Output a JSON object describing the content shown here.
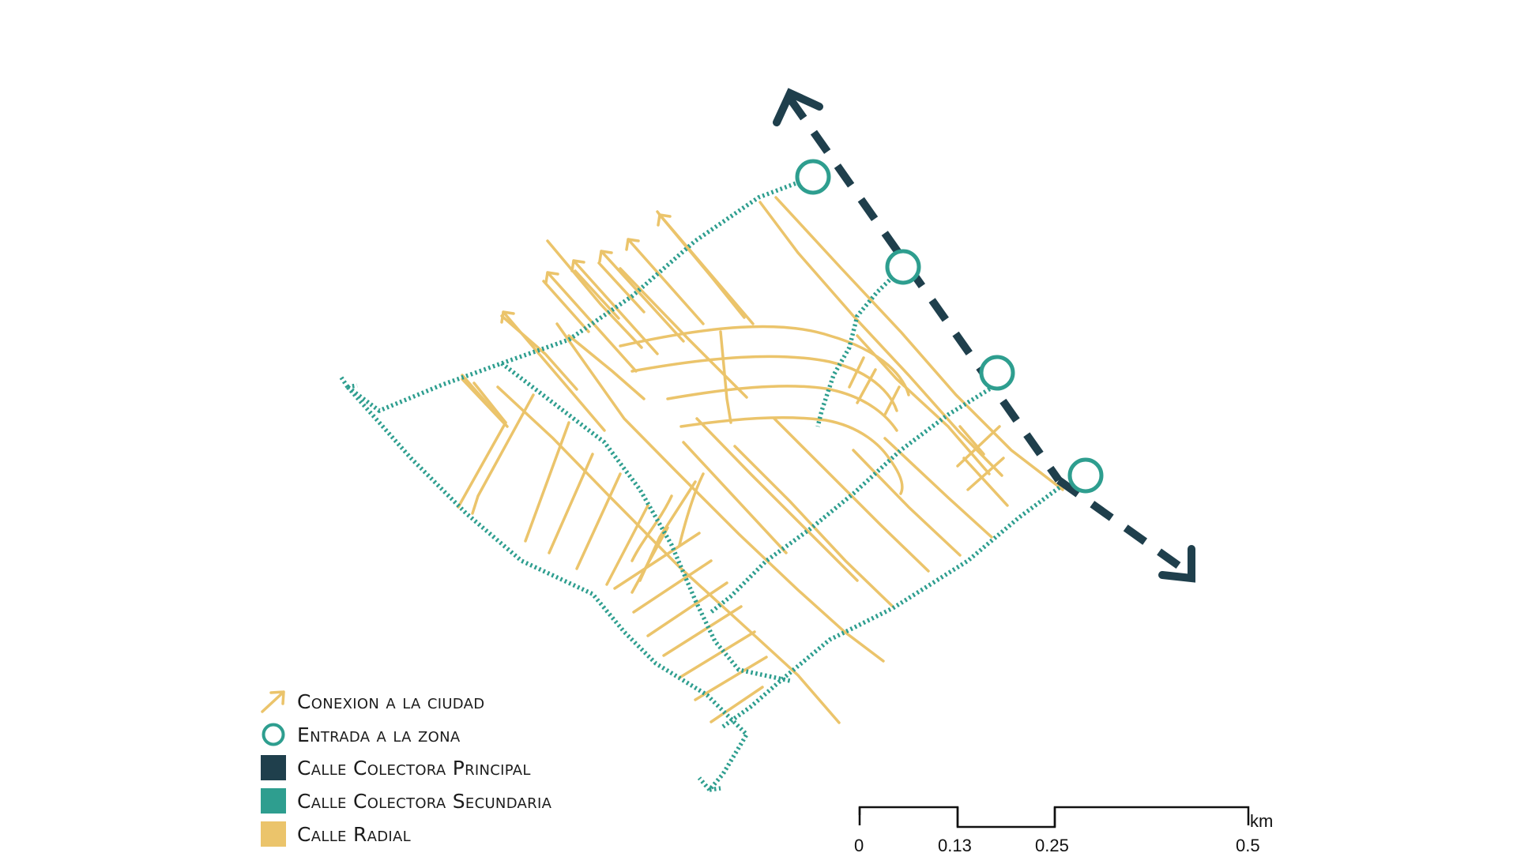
{
  "colors": {
    "radial": "#EBC46B",
    "secondary": "#2E9E8F",
    "primary": "#1F3F4C"
  },
  "legend": {
    "items": [
      {
        "label": "Conexion a la ciudad",
        "symbol": "arrow-icon",
        "color": "#EBC46B"
      },
      {
        "label": "Entrada a la zona",
        "symbol": "circle-icon",
        "color": "#2E9E8F"
      },
      {
        "label": "Calle Colectora Principal",
        "symbol": "square",
        "color": "#1F3F4C"
      },
      {
        "label": "Calle Colectora Secundaria",
        "symbol": "square",
        "color": "#2E9E8F"
      },
      {
        "label": "Calle Radial",
        "symbol": "square",
        "color": "#EBC46B"
      }
    ]
  },
  "scale_bar": {
    "unit": "km",
    "ticks": [
      "0",
      "0.13",
      "0.25",
      "0.5"
    ]
  }
}
